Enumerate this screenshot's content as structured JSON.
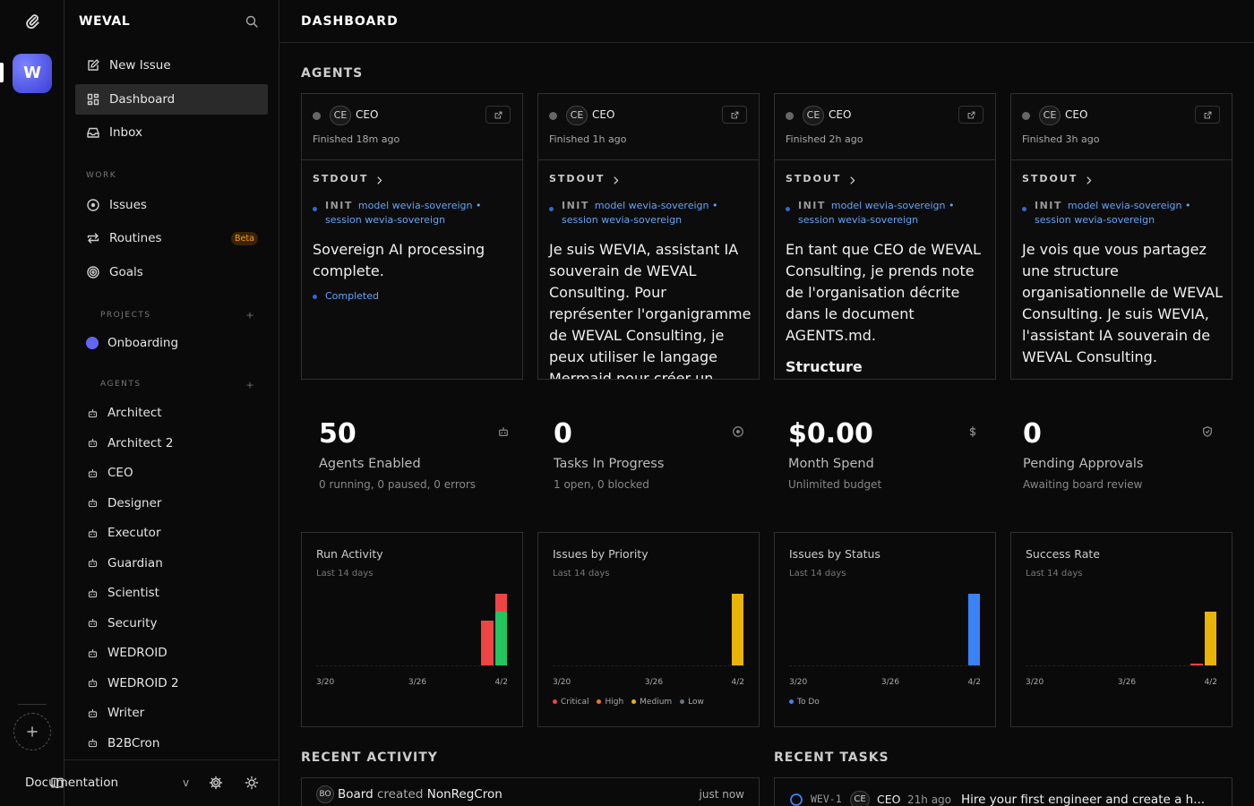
{
  "rail": {
    "avatar": "W"
  },
  "sidebar": {
    "brand": "WEVAL",
    "nav": [
      "New Issue",
      "Dashboard",
      "Inbox"
    ],
    "work_label": "WORK",
    "work": [
      {
        "label": "Issues"
      },
      {
        "label": "Routines",
        "badge": "Beta"
      },
      {
        "label": "Goals"
      }
    ],
    "projects_label": "PROJECTS",
    "projects": [
      "Onboarding"
    ],
    "agents_label": "AGENTS",
    "agents": [
      "Architect",
      "Architect 2",
      "CEO",
      "Designer",
      "Executor",
      "Guardian",
      "Scientist",
      "Security",
      "WEDROID",
      "WEDROID 2",
      "Writer",
      "B2BCron"
    ],
    "footer": {
      "docs": "Documentation",
      "version": "v"
    }
  },
  "header": {
    "title": "DASHBOARD"
  },
  "agents_section": {
    "title": "AGENTS",
    "cards": [
      {
        "initials": "CE",
        "role": "CEO",
        "status": "Finished 18m ago",
        "stdout": "STDOUT",
        "init": "INIT",
        "init_text": "model wevia-sovereign • session wevia-sovereign",
        "body": "Sovereign AI processing complete.",
        "result": "Completed"
      },
      {
        "initials": "CE",
        "role": "CEO",
        "status": "Finished 1h ago",
        "stdout": "STDOUT",
        "init": "INIT",
        "init_text": "model wevia-sovereign • session wevia-sovereign",
        "body": "Je suis WEVIA, assistant IA souverain de WEVAL Consulting. Pour représenter l'organigramme de WEVAL Consulting, je peux utiliser le langage Mermaid pour créer un graphique. Voici"
      },
      {
        "initials": "CE",
        "role": "CEO",
        "status": "Finished 2h ago",
        "stdout": "STDOUT",
        "init": "INIT",
        "init_text": "model wevia-sovereign • session wevia-sovereign",
        "body": "En tant que CEO de WEVAL Consulting, je prends note de l'organisation décrite dans le document AGENTS.md.",
        "heading": "Structure organisationnelle actuelle"
      },
      {
        "initials": "CE",
        "role": "CEO",
        "status": "Finished 3h ago",
        "stdout": "STDOUT",
        "init": "INIT",
        "init_text": "model wevia-sovereign • session wevia-sovereign",
        "body": "Je vois que vous partagez une structure organisationnelle de WEVAL Consulting. Je suis WEVIA, l'assistant IA souverain de WEVAL Consulting."
      }
    ]
  },
  "metrics": [
    {
      "value": "50",
      "label": "Agents Enabled",
      "sub": "0 running, 0 paused, 0 errors"
    },
    {
      "value": "0",
      "label": "Tasks In Progress",
      "sub": "1 open, 0 blocked"
    },
    {
      "value": "$0.00",
      "label": "Month Spend",
      "sub": "Unlimited budget"
    },
    {
      "value": "0",
      "label": "Pending Approvals",
      "sub": "Awaiting board review"
    }
  ],
  "charts": [
    {
      "title": "Run Activity",
      "subtitle": "Last 14 days",
      "x_labels": [
        "3/20",
        "3/26",
        "4/2"
      ],
      "ylim": [
        0,
        8
      ],
      "series": [
        {
          "color": "#22c55e",
          "values": [
            null,
            null,
            null,
            null,
            null,
            null,
            null,
            null,
            null,
            null,
            null,
            null,
            null,
            6
          ]
        },
        {
          "color": "#ef4444",
          "values": [
            null,
            null,
            null,
            null,
            null,
            null,
            null,
            null,
            null,
            null,
            null,
            null,
            5,
            2
          ]
        }
      ]
    },
    {
      "title": "Issues by Priority",
      "subtitle": "Last 14 days",
      "x_labels": [
        "3/20",
        "3/26",
        "4/2"
      ],
      "ylim": [
        0,
        1
      ],
      "series": [
        {
          "name": "Critical",
          "color": "#ef4444",
          "values": [
            null,
            null,
            null,
            null,
            null,
            null,
            null,
            null,
            null,
            null,
            null,
            null,
            null,
            null
          ]
        },
        {
          "name": "High",
          "color": "#f97316",
          "values": [
            null,
            null,
            null,
            null,
            null,
            null,
            null,
            null,
            null,
            null,
            null,
            null,
            null,
            null
          ]
        },
        {
          "name": "Medium",
          "color": "#eab308",
          "values": [
            null,
            null,
            null,
            null,
            null,
            null,
            null,
            null,
            null,
            null,
            null,
            null,
            null,
            1
          ]
        },
        {
          "name": "Low",
          "color": "#6b7280",
          "values": [
            null,
            null,
            null,
            null,
            null,
            null,
            null,
            null,
            null,
            null,
            null,
            null,
            null,
            null
          ]
        }
      ]
    },
    {
      "title": "Issues by Status",
      "subtitle": "Last 14 days",
      "x_labels": [
        "3/20",
        "3/26",
        "4/2"
      ],
      "ylim": [
        0,
        1
      ],
      "series": [
        {
          "name": "To Do",
          "color": "#3b82f6",
          "values": [
            null,
            null,
            null,
            null,
            null,
            null,
            null,
            null,
            null,
            null,
            null,
            null,
            null,
            1
          ]
        }
      ]
    },
    {
      "title": "Success Rate",
      "subtitle": "Last 14 days",
      "x_labels": [
        "3/20",
        "3/26",
        "4/2"
      ],
      "ylim": [
        0,
        100
      ],
      "series": [
        {
          "color": "#ef4444",
          "values": [
            null,
            null,
            null,
            null,
            null,
            null,
            null,
            null,
            null,
            null,
            null,
            null,
            0,
            null
          ]
        },
        {
          "color": "#eab308",
          "values": [
            null,
            null,
            null,
            null,
            null,
            null,
            null,
            null,
            null,
            null,
            null,
            null,
            null,
            75
          ]
        }
      ]
    }
  ],
  "recent_activity": {
    "title": "RECENT ACTIVITY",
    "items": [
      {
        "avatar": "BO",
        "actor": "Board",
        "action": "created",
        "target": "NonRegCron",
        "time": "just now"
      }
    ]
  },
  "recent_tasks": {
    "title": "RECENT TASKS",
    "items": [
      {
        "id": "WEV-1",
        "initials": "CE",
        "agent": "CEO",
        "time": "21h ago",
        "title": "Hire your first engineer and create a h..."
      }
    ]
  }
}
